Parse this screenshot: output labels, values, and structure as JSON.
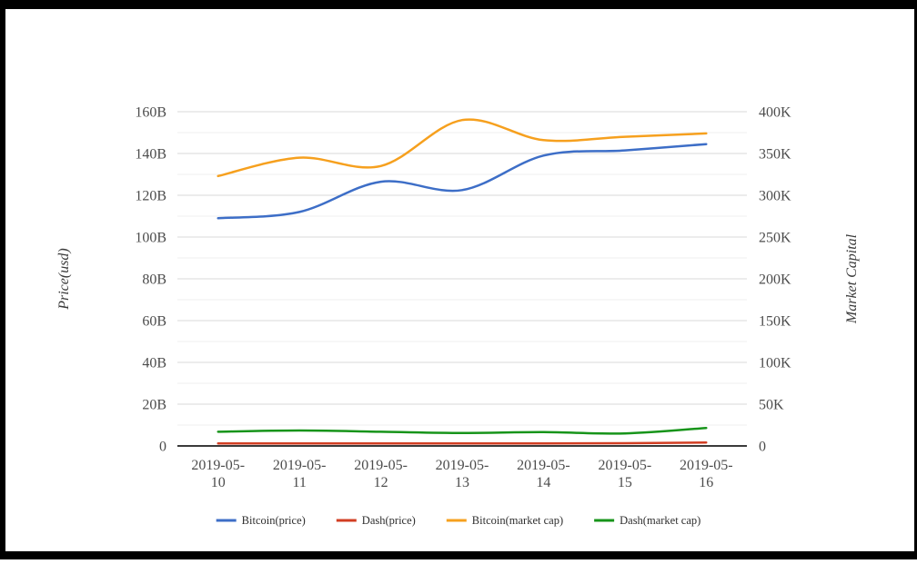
{
  "window": {
    "frame_color": "#000000",
    "background": "#ffffff"
  },
  "chart_data": {
    "type": "line",
    "smooth": true,
    "title": "",
    "grid": true,
    "legend_position": "bottom",
    "categories": [
      "2019-05-10",
      "2019-05-11",
      "2019-05-12",
      "2019-05-13",
      "2019-05-14",
      "2019-05-15",
      "2019-05-16"
    ],
    "left_axis": {
      "label": "Price(usd)",
      "min": 0,
      "max": 160,
      "tick_labels": [
        "0",
        "20B",
        "40B",
        "60B",
        "80B",
        "100B",
        "120B",
        "140B",
        "160B"
      ]
    },
    "right_axis": {
      "label": "Market Capital",
      "min": 0,
      "max": 400,
      "tick_labels": [
        "0",
        "50K",
        "100K",
        "150K",
        "200K",
        "250K",
        "300K",
        "350K",
        "400K"
      ]
    },
    "series": [
      {
        "name": "Bitcoin(price)",
        "axis": "left",
        "color": "#3d6ec7",
        "values": [
          109,
          112,
          126.5,
          122.5,
          139,
          141.5,
          144.5
        ]
      },
      {
        "name": "Dash(price)",
        "axis": "left",
        "color": "#d23e23",
        "values": [
          1.2,
          1.2,
          1.2,
          1.2,
          1.2,
          1.3,
          1.6
        ]
      },
      {
        "name": "Bitcoin(market cap)",
        "axis": "right",
        "color": "#f6a01e",
        "values": [
          323,
          345,
          335,
          390,
          366,
          370,
          374
        ]
      },
      {
        "name": "Dash(market cap)",
        "axis": "right",
        "color": "#17941a",
        "values": [
          17,
          18.5,
          17,
          15.5,
          16.5,
          15,
          21.5
        ]
      }
    ],
    "style": {
      "grid_major_color": "#d9d9d9",
      "grid_minor_color": "#efefef",
      "axis_line_color": "#3b3b3b"
    }
  }
}
